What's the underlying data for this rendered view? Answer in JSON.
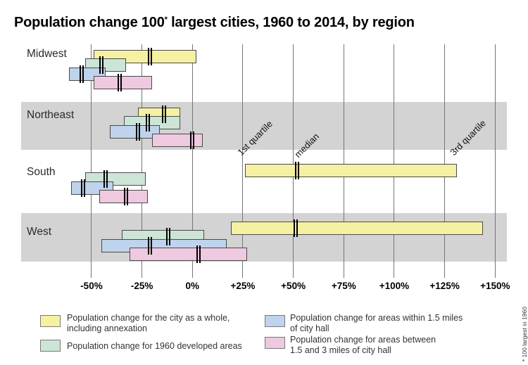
{
  "title": {
    "prefix": "Population change 100",
    "star": "*",
    "suffix": " largest cities, 1960 to 2014, by region"
  },
  "footnote": "* 100 largest in 1960",
  "chart_data": {
    "type": "bar",
    "subtype": "horizontal-quartile-range-bars",
    "title": "Population change 100* largest cities, 1960 to 2014, by region",
    "value_unit": "% population change 1960 to 2014",
    "x_axis": {
      "ticks": [
        -50,
        -25,
        0,
        25,
        50,
        75,
        100,
        125,
        150
      ],
      "tick_labels": [
        "-50%",
        "-25%",
        "0%",
        "+25%",
        "+50%",
        "+75%",
        "+100%",
        "+125%",
        "+150%"
      ],
      "range": [
        -65,
        160
      ],
      "gridlines": true
    },
    "series": [
      {
        "key": "city-whole",
        "label": "Population change for the city as a whole, including annexation",
        "color": "#f6f0a2"
      },
      {
        "key": "developed-1960",
        "label": "Population change for 1960 developed areas",
        "color": "#cce5d6"
      },
      {
        "key": "within-1-5",
        "label": "Population change for areas within 1.5 miles of city hall",
        "color": "#bfd3ec"
      },
      {
        "key": "between-1-5-3",
        "label": "Population change for areas between 1.5 and 3 miles of city hall",
        "color": "#eec9e0"
      }
    ],
    "regions": [
      {
        "name": "Midwest",
        "shaded": false,
        "bars": [
          {
            "series": "city-whole",
            "q1": -49,
            "median": -21,
            "q3": 2
          },
          {
            "series": "developed-1960",
            "q1": -53,
            "median": -45,
            "q3": -33
          },
          {
            "series": "within-1-5",
            "q1": -61,
            "median": -55,
            "q3": -43
          },
          {
            "series": "between-1-5-3",
            "q1": -49,
            "median": -36,
            "q3": -20
          }
        ]
      },
      {
        "name": "Northeast",
        "shaded": true,
        "bars": [
          {
            "series": "city-whole",
            "q1": -27,
            "median": -14,
            "q3": -6
          },
          {
            "series": "developed-1960",
            "q1": -34,
            "median": -22,
            "q3": -6
          },
          {
            "series": "within-1-5",
            "q1": -41,
            "median": -27,
            "q3": -16
          },
          {
            "series": "between-1-5-3",
            "q1": -20,
            "median": 0,
            "q3": 5
          }
        ]
      },
      {
        "name": "South",
        "shaded": false,
        "bars": [
          {
            "series": "city-whole",
            "q1": 26,
            "median": 52,
            "q3": 131
          },
          {
            "series": "developed-1960",
            "q1": -53,
            "median": -43,
            "q3": -23
          },
          {
            "series": "within-1-5",
            "q1": -60,
            "median": -54,
            "q3": -39
          },
          {
            "series": "between-1-5-3",
            "q1": -46,
            "median": -33,
            "q3": -22
          }
        ]
      },
      {
        "name": "West",
        "shaded": true,
        "bars": [
          {
            "series": "city-whole",
            "q1": 19,
            "median": 51,
            "q3": 144
          },
          {
            "series": "developed-1960",
            "q1": -35,
            "median": -12,
            "q3": 6
          },
          {
            "series": "within-1-5",
            "q1": -45,
            "median": -21,
            "q3": 17
          },
          {
            "series": "between-1-5-3",
            "q1": -31,
            "median": 3,
            "q3": 27
          }
        ]
      }
    ],
    "annotations": [
      "1st quartile",
      "median",
      "3rd quartile"
    ],
    "colors": {
      "band": "#d3d3d3",
      "gridline": "#757575",
      "bar_border": "#4a4a4a",
      "median_marker": "#000000"
    }
  },
  "legend": {
    "items": [
      {
        "color": "#f6f0a2",
        "lines": [
          "Population change for the city as a whole,",
          "including annexation"
        ]
      },
      {
        "color": "#cce5d6",
        "lines": [
          "Population change for 1960 developed areas"
        ]
      },
      {
        "color": "#bfd3ec",
        "lines": [
          "Population change for areas within 1.5 miles",
          "of city hall"
        ]
      },
      {
        "color": "#eec9e0",
        "lines": [
          "Population change for areas between",
          "1.5 and 3 miles of city hall"
        ]
      }
    ]
  }
}
